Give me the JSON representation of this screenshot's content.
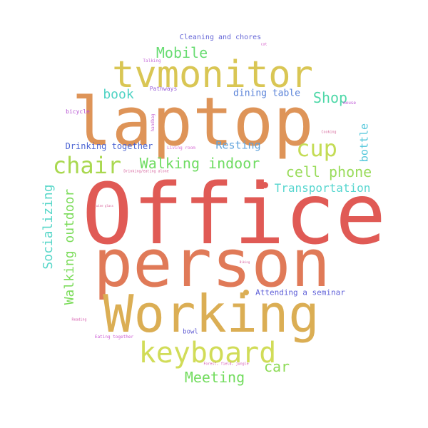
{
  "words": [
    {
      "text": "Office",
      "color": "#E05A55"
    },
    {
      "text": "laptop",
      "color": "#DE9458"
    },
    {
      "text": "person",
      "color": "#E07A58"
    },
    {
      "text": "Working",
      "color": "#DBAE54"
    },
    {
      "text": "tvmonitor",
      "color": "#D9C654"
    },
    {
      "text": "keyboard",
      "color": "#D1DC58"
    },
    {
      "text": "chair",
      "color": "#A9D84F"
    },
    {
      "text": "cup",
      "color": "#C4DC55"
    },
    {
      "text": "Walking indoor",
      "color": "#6FDC62"
    },
    {
      "text": "cell phone",
      "color": "#9ADC5B"
    },
    {
      "text": "Mobile",
      "color": "#68DC72"
    },
    {
      "text": "Shop",
      "color": "#4FD8A8"
    },
    {
      "text": "book",
      "color": "#4FD3C4"
    },
    {
      "text": "Walking outdoor",
      "color": "#7CDC5B"
    },
    {
      "text": "Socializing",
      "color": "#59D7C9"
    },
    {
      "text": "Transportation",
      "color": "#56D6CF"
    },
    {
      "text": "Meeting",
      "color": "#72DC5E"
    },
    {
      "text": "car",
      "color": "#8EDB57"
    },
    {
      "text": "bottle",
      "color": "#4FC6DA"
    },
    {
      "text": "Resting",
      "color": "#5EA2DC"
    },
    {
      "text": "dining table",
      "color": "#5982D8"
    },
    {
      "text": "Drinking together",
      "color": "#4C64D2"
    },
    {
      "text": "Attending a seminar",
      "color": "#5F60D8"
    },
    {
      "text": "Cleaning and chores",
      "color": "#6566D6"
    },
    {
      "text": "bowl",
      "color": "#6460D4"
    },
    {
      "text": "Pathways",
      "color": "#9A60D8"
    },
    {
      "text": "bicycle",
      "color": "#B653D2"
    },
    {
      "text": "Talking",
      "color": "#C66BD8"
    },
    {
      "text": "handbag",
      "color": "#C86AD4"
    },
    {
      "text": "Living room",
      "color": "#D76BD4"
    },
    {
      "text": "mouse",
      "color": "#BE55D6"
    },
    {
      "text": "Cooking",
      "color": "#D66A9C"
    },
    {
      "text": "cat",
      "color": "#D866CC"
    },
    {
      "text": "Drinking/eating alone",
      "color": "#D6629C"
    },
    {
      "text": "Reading",
      "color": "#D864B2"
    },
    {
      "text": "Eating together",
      "color": "#CC5CD4"
    },
    {
      "text": "Forest, field, jungle",
      "color": "#D65CB4"
    },
    {
      "text": "Biking",
      "color": "#D85C9A"
    },
    {
      "text": "wine glass",
      "color": "#D65C96"
    }
  ]
}
